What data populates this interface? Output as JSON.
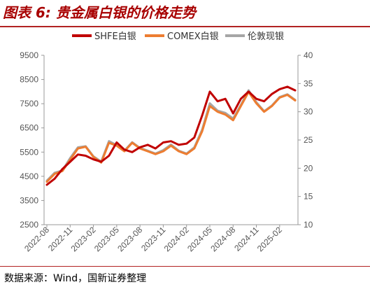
{
  "title": "图表 6:  贵金属白银的价格走势",
  "source": "数据来源：Wind，国新证券整理",
  "chart_data": {
    "type": "line",
    "title": "",
    "legend_position": "top",
    "grid": false,
    "y_left": {
      "min": 2500,
      "max": 9500,
      "ticks": [
        2500,
        3500,
        4500,
        5500,
        6500,
        7500,
        8500,
        9500
      ]
    },
    "y_right": {
      "min": 10,
      "max": 40,
      "ticks": [
        10,
        15,
        20,
        25,
        30,
        35,
        40
      ]
    },
    "x_ticks": [
      "2022-08",
      "2022-11",
      "2023-02",
      "2023-05",
      "2023-08",
      "2023-11",
      "2024-02",
      "2024-05",
      "2024-08",
      "2024-11",
      "2025-02"
    ],
    "x": [
      "2022-08",
      "2022-09",
      "2022-10",
      "2022-11",
      "2022-12",
      "2023-01",
      "2023-02",
      "2023-03",
      "2023-04",
      "2023-05",
      "2023-06",
      "2023-07",
      "2023-08",
      "2023-09",
      "2023-10",
      "2023-11",
      "2023-12",
      "2024-01",
      "2024-02",
      "2024-03",
      "2024-04",
      "2024-05",
      "2024-06",
      "2024-07",
      "2024-08",
      "2024-09",
      "2024-10",
      "2024-11",
      "2024-12",
      "2025-01",
      "2025-02",
      "2025-03",
      "2025-04"
    ],
    "series": [
      {
        "name": "SHFE白银",
        "axis": "left",
        "color": "#c00000",
        "values": [
          4150,
          4400,
          4800,
          5100,
          5400,
          5350,
          5200,
          5100,
          5350,
          5900,
          5600,
          5500,
          5700,
          5800,
          5650,
          5900,
          5950,
          5800,
          5850,
          6100,
          7000,
          8000,
          7600,
          7700,
          7100,
          7700,
          8000,
          7700,
          7600,
          7900,
          8100,
          8200,
          8050
        ]
      },
      {
        "name": "COMEX白银",
        "axis": "right",
        "color": "#ed7d31",
        "values": [
          17.6,
          19.0,
          19.5,
          21.5,
          23.5,
          23.8,
          22.0,
          21.0,
          24.5,
          24.0,
          23.0,
          24.5,
          23.5,
          23.0,
          22.5,
          23.0,
          24.0,
          23.0,
          22.5,
          23.5,
          26.5,
          31.0,
          30.0,
          29.5,
          28.5,
          31.0,
          33.5,
          31.5,
          30.0,
          31.0,
          32.5,
          33.0,
          32.0
        ]
      },
      {
        "name": "伦敦现银",
        "axis": "right",
        "color": "#a6a6a6",
        "values": [
          17.8,
          19.2,
          19.6,
          21.8,
          23.7,
          23.9,
          22.1,
          21.2,
          24.8,
          24.1,
          23.1,
          24.6,
          23.6,
          23.1,
          22.6,
          23.2,
          24.2,
          23.1,
          22.6,
          23.7,
          26.8,
          31.5,
          30.2,
          29.8,
          28.8,
          31.2,
          33.8,
          31.7,
          30.1,
          31.1,
          32.6,
          33.1,
          32.1
        ]
      }
    ]
  }
}
